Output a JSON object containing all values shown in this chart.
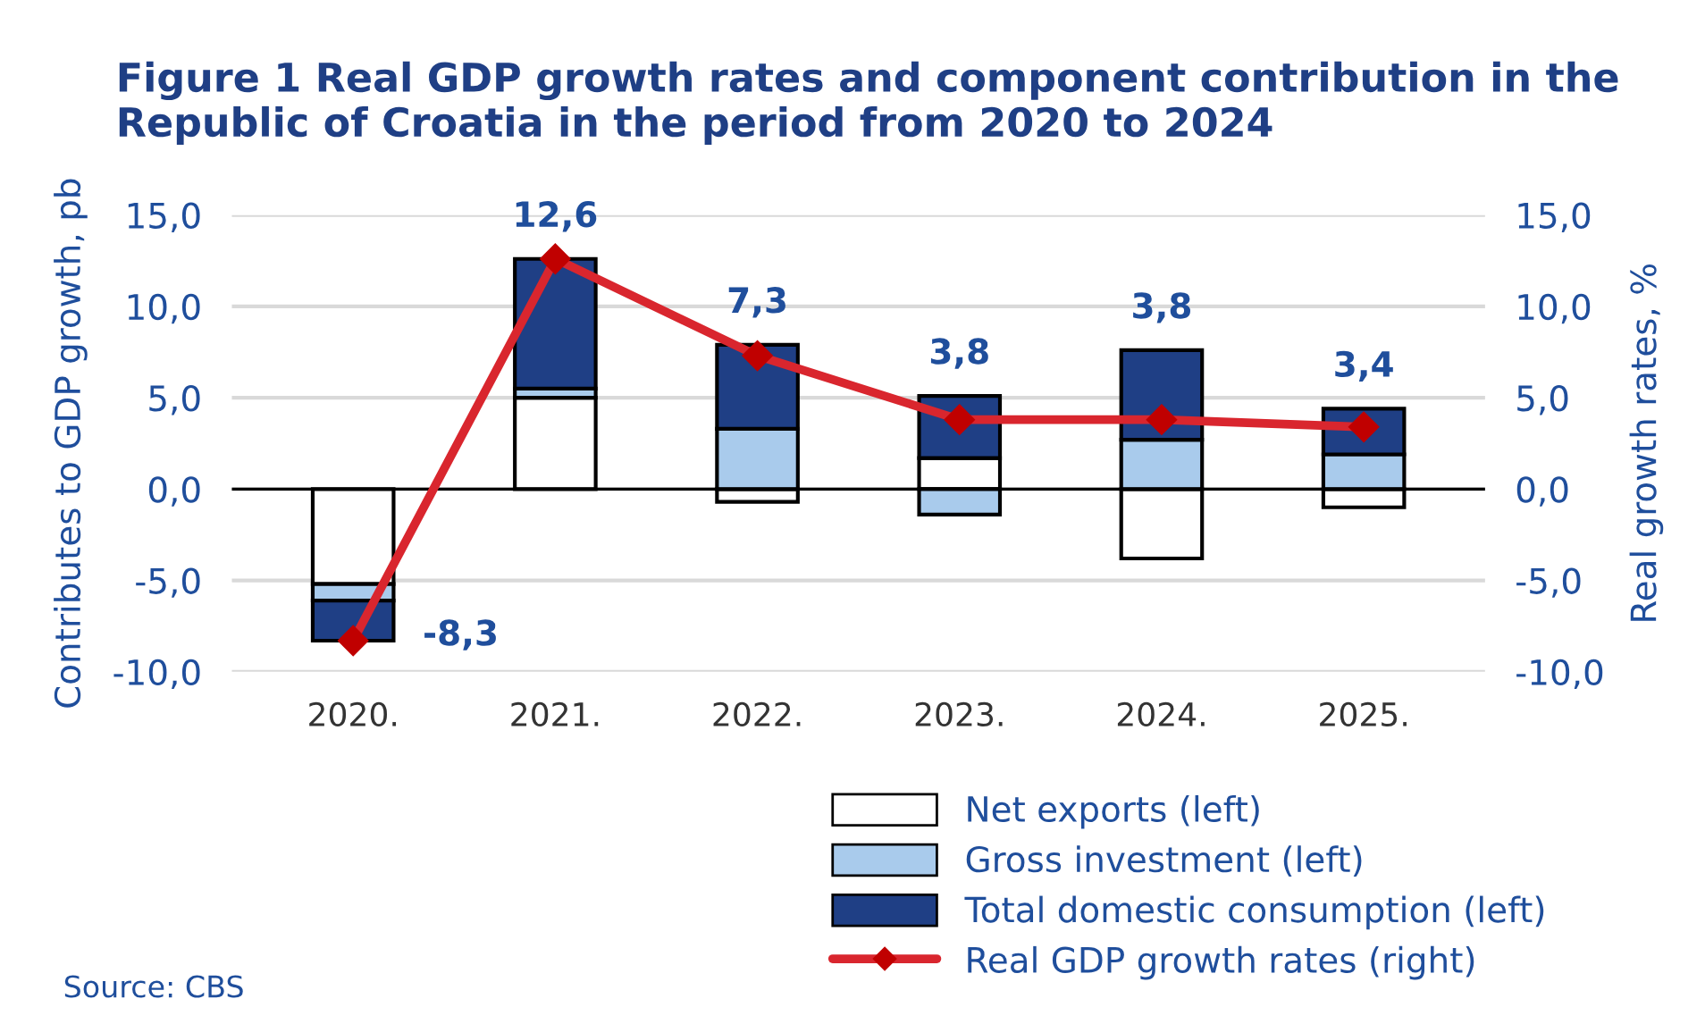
{
  "chart_data": {
    "type": "bar",
    "stacked": true,
    "title": "Figure 1 Real GDP growth rates and component contribution in the Republic of Croatia in the period from 2020 to 2024",
    "ylabel": "Contributes to GDP growth, pb",
    "y2label": "Real growth rates, %",
    "categories": [
      "2020.",
      "2021.",
      "2022.",
      "2023.",
      "2024.",
      "2025."
    ],
    "series": [
      {
        "name": "Net exports (left)",
        "color": "#ffffff",
        "values": [
          -5.2,
          5.0,
          -0.7,
          1.7,
          -3.8,
          -1.0
        ]
      },
      {
        "name": "Gross investment (left)",
        "color": "#a9cbec",
        "values": [
          -0.9,
          0.5,
          3.3,
          -1.4,
          2.7,
          1.9
        ]
      },
      {
        "name": "Total domestic consumption (left)",
        "color": "#1f3f85",
        "values": [
          -2.2,
          7.1,
          4.6,
          3.4,
          4.9,
          2.5
        ]
      },
      {
        "name": "Real GDP growth rates (right)",
        "type": "line",
        "axis": "y2",
        "color": "#d9262e",
        "marker": "diamond",
        "values": [
          -8.3,
          12.6,
          7.3,
          3.8,
          3.8,
          3.4
        ],
        "value_labels": [
          "-8,3",
          "12,6",
          "7,3",
          "3,8",
          "3,8",
          "3,4"
        ]
      }
    ],
    "ylim": [
      -10,
      15
    ],
    "yticks": [
      {
        "value": -10,
        "label": "-10,0"
      },
      {
        "value": -5,
        "label": "-5,0"
      },
      {
        "value": 0,
        "label": "0,0"
      },
      {
        "value": 5,
        "label": "5,0"
      },
      {
        "value": 10,
        "label": "10,0"
      },
      {
        "value": 15,
        "label": "15,0"
      }
    ],
    "y2lim": [
      -10,
      15
    ],
    "y2ticks": [
      {
        "value": -10,
        "label": "-10,0"
      },
      {
        "value": -5,
        "label": "-5,0"
      },
      {
        "value": 0,
        "label": "0,0"
      },
      {
        "value": 5,
        "label": "5,0"
      },
      {
        "value": 10,
        "label": "10,0"
      },
      {
        "value": 15,
        "label": "15,0"
      }
    ],
    "grid": "y",
    "legend": "bottom",
    "annotations": [
      "Source: CBS"
    ]
  }
}
